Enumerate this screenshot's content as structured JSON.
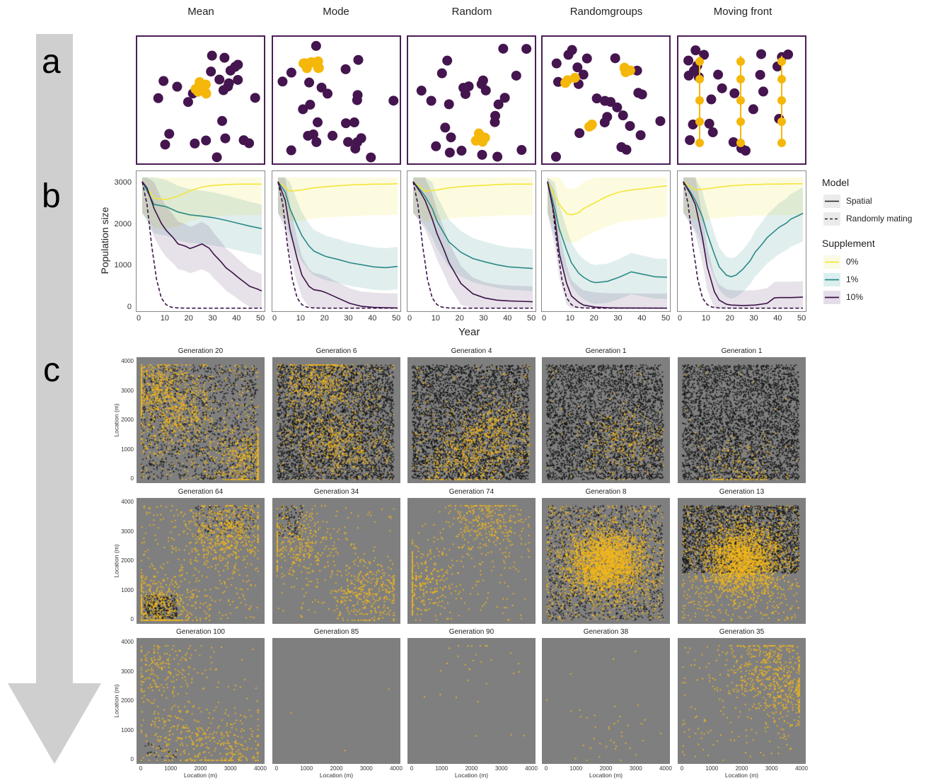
{
  "row_letters": [
    "a",
    "b",
    "c"
  ],
  "columns": [
    "Mean",
    "Mode",
    "Random",
    "Randomgroups",
    "Moving front"
  ],
  "colors": {
    "resident": "#44154f",
    "supplement": "#f5b70a",
    "s0": "#f2e63a",
    "s1": "#2a8a86",
    "s10": "#3b1148",
    "c_background": "#7f7f7f",
    "c_black": "#111111",
    "c_yellow": "#f2b71c",
    "arrow": "#cfcfcf"
  },
  "legend": {
    "model_title": "Model",
    "model_items": [
      "Spatial",
      "Randomly mating"
    ],
    "supplement_title": "Supplement",
    "supplement_items": [
      "0%",
      "1%",
      "10%"
    ]
  },
  "chart_data": [
    {
      "type": "line",
      "row": "b",
      "xlabel": "Year",
      "ylabel": "Population size",
      "xlim": [
        0,
        50
      ],
      "ylim": [
        0,
        3200
      ],
      "xticks": [
        0,
        10,
        20,
        30,
        40,
        50
      ],
      "yticks": [
        0,
        1000,
        2000,
        3000
      ],
      "panels": [
        {
          "strategy": "Mean",
          "series": [
            {
              "supplement": "0%",
              "model": "Spatial",
              "x": [
                0,
                5,
                10,
                15,
                20,
                25,
                30,
                35,
                40,
                45,
                50
              ],
              "y": [
                3050,
                2650,
                2620,
                2700,
                2830,
                2920,
                2960,
                2980,
                2990,
                2990,
                2990
              ]
            },
            {
              "supplement": "1%",
              "model": "Spatial",
              "x": [
                0,
                5,
                10,
                15,
                20,
                25,
                30,
                35,
                40,
                45,
                50
              ],
              "y": [
                3050,
                2500,
                2450,
                2320,
                2250,
                2220,
                2180,
                2120,
                2050,
                1980,
                1920
              ]
            },
            {
              "supplement": "10%",
              "model": "Spatial",
              "x": [
                0,
                2,
                5,
                8,
                10,
                13,
                15,
                18,
                20,
                22,
                25,
                28,
                30,
                33,
                35,
                38,
                40,
                43,
                45,
                48,
                50
              ],
              "y": [
                3050,
                2900,
                2400,
                2050,
                1880,
                1700,
                1550,
                1500,
                1440,
                1480,
                1550,
                1450,
                1300,
                1120,
                980,
                850,
                750,
                620,
                530,
                470,
                420
              ]
            },
            {
              "supplement": "10%",
              "model": "Randomly mating",
              "x": [
                0,
                2,
                4,
                6,
                8,
                10,
                12,
                15,
                20,
                50
              ],
              "y": [
                3050,
                2500,
                1500,
                700,
                250,
                90,
                30,
                10,
                5,
                5
              ]
            }
          ]
        },
        {
          "strategy": "Mode",
          "series": [
            {
              "supplement": "0%",
              "model": "Spatial",
              "x": [
                0,
                5,
                10,
                15,
                20,
                25,
                30,
                35,
                40,
                45,
                50
              ],
              "y": [
                3050,
                2820,
                2850,
                2900,
                2930,
                2950,
                2970,
                2980,
                2990,
                2990,
                3000
              ]
            },
            {
              "supplement": "1%",
              "model": "Spatial",
              "x": [
                0,
                3,
                5,
                8,
                10,
                13,
                15,
                18,
                20,
                25,
                30,
                35,
                40,
                45,
                50
              ],
              "y": [
                3050,
                2800,
                2400,
                2000,
                1750,
                1500,
                1380,
                1300,
                1250,
                1180,
                1100,
                1050,
                1000,
                980,
                1010
              ]
            },
            {
              "supplement": "10%",
              "model": "Spatial",
              "x": [
                0,
                3,
                5,
                8,
                10,
                13,
                15,
                18,
                20,
                25,
                30,
                35,
                40,
                45,
                50
              ],
              "y": [
                3050,
                2600,
                1900,
                1200,
                800,
                530,
                450,
                420,
                380,
                250,
                120,
                50,
                25,
                15,
                10
              ]
            },
            {
              "supplement": "10%",
              "model": "Randomly mating",
              "x": [
                0,
                2,
                4,
                6,
                8,
                10,
                12,
                15,
                20,
                50
              ],
              "y": [
                3050,
                2500,
                1500,
                700,
                250,
                90,
                30,
                10,
                5,
                5
              ]
            }
          ]
        },
        {
          "strategy": "Random",
          "series": [
            {
              "supplement": "0%",
              "model": "Spatial",
              "x": [
                0,
                5,
                10,
                15,
                20,
                25,
                30,
                35,
                40,
                45,
                50
              ],
              "y": [
                3050,
                2820,
                2850,
                2900,
                2930,
                2950,
                2960,
                2980,
                2990,
                2990,
                2990
              ]
            },
            {
              "supplement": "1%",
              "model": "Spatial",
              "x": [
                0,
                3,
                5,
                8,
                10,
                13,
                15,
                18,
                20,
                25,
                30,
                35,
                40,
                45,
                50
              ],
              "y": [
                3050,
                2850,
                2700,
                2400,
                2100,
                1800,
                1600,
                1450,
                1350,
                1200,
                1120,
                1050,
                1000,
                980,
                960
              ]
            },
            {
              "supplement": "10%",
              "model": "Spatial",
              "x": [
                0,
                3,
                5,
                8,
                10,
                13,
                15,
                18,
                20,
                25,
                30,
                35,
                40,
                45,
                50
              ],
              "y": [
                3050,
                2800,
                2600,
                2150,
                1800,
                1400,
                1100,
                800,
                600,
                350,
                250,
                200,
                180,
                170,
                160
              ]
            },
            {
              "supplement": "10%",
              "model": "Randomly mating",
              "x": [
                0,
                2,
                4,
                6,
                8,
                10,
                12,
                15,
                20,
                50
              ],
              "y": [
                3050,
                2500,
                1500,
                700,
                250,
                90,
                30,
                10,
                5,
                5
              ]
            }
          ]
        },
        {
          "strategy": "Randomgroups",
          "series": [
            {
              "supplement": "0%",
              "model": "Spatial",
              "x": [
                0,
                3,
                5,
                8,
                10,
                13,
                15,
                20,
                25,
                30,
                35,
                40,
                45,
                50
              ],
              "y": [
                3050,
                2700,
                2500,
                2280,
                2250,
                2300,
                2400,
                2550,
                2700,
                2800,
                2850,
                2880,
                2920,
                2950
              ]
            },
            {
              "supplement": "1%",
              "model": "Spatial",
              "x": [
                0,
                3,
                5,
                8,
                10,
                13,
                15,
                18,
                20,
                25,
                30,
                35,
                40,
                45,
                50
              ],
              "y": [
                3050,
                2400,
                1900,
                1400,
                1100,
                850,
                750,
                650,
                620,
                650,
                750,
                880,
                820,
                760,
                750
              ]
            },
            {
              "supplement": "10%",
              "model": "Spatial",
              "x": [
                0,
                3,
                5,
                8,
                10,
                13,
                15,
                20,
                25,
                30,
                50
              ],
              "y": [
                3050,
                2200,
                1300,
                600,
                300,
                150,
                80,
                30,
                15,
                10,
                5
              ]
            },
            {
              "supplement": "10%",
              "model": "Randomly mating",
              "x": [
                0,
                2,
                4,
                6,
                8,
                10,
                12,
                15,
                20,
                50
              ],
              "y": [
                3050,
                2500,
                1500,
                700,
                250,
                90,
                30,
                10,
                5,
                5
              ]
            }
          ]
        },
        {
          "strategy": "Moving front",
          "series": [
            {
              "supplement": "0%",
              "model": "Spatial",
              "x": [
                0,
                5,
                10,
                15,
                20,
                25,
                30,
                35,
                40,
                45,
                50
              ],
              "y": [
                3050,
                2850,
                2880,
                2920,
                2950,
                2970,
                2980,
                2990,
                2990,
                3000,
                3000
              ]
            },
            {
              "supplement": "1%",
              "model": "Spatial",
              "x": [
                0,
                3,
                5,
                8,
                10,
                13,
                15,
                18,
                20,
                22,
                25,
                28,
                30,
                33,
                35,
                38,
                40,
                43,
                45,
                48,
                50
              ],
              "y": [
                3050,
                2800,
                2600,
                2200,
                1800,
                1300,
                1000,
                800,
                760,
                800,
                950,
                1150,
                1350,
                1550,
                1700,
                1850,
                1950,
                2050,
                2150,
                2230,
                2290
              ]
            },
            {
              "supplement": "10%",
              "model": "Spatial",
              "x": [
                0,
                3,
                5,
                8,
                10,
                13,
                15,
                18,
                20,
                25,
                30,
                35,
                38,
                40,
                45,
                50
              ],
              "y": [
                3050,
                2750,
                2500,
                1700,
                1000,
                400,
                200,
                100,
                80,
                70,
                80,
                120,
                250,
                260,
                260,
                270
              ]
            },
            {
              "supplement": "10%",
              "model": "Randomly mating",
              "x": [
                0,
                2,
                4,
                6,
                8,
                10,
                12,
                15,
                20,
                50
              ],
              "y": [
                3050,
                2500,
                1500,
                700,
                250,
                90,
                30,
                10,
                5,
                5
              ]
            }
          ]
        }
      ]
    },
    {
      "type": "scatter",
      "row": "c",
      "xlabel": "Location (m)",
      "ylabel": "Location (m)",
      "xlim": [
        0,
        4000
      ],
      "ylim": [
        0,
        4000
      ],
      "xticks": [
        0,
        1000,
        2000,
        3000,
        4000
      ],
      "yticks": [
        0,
        1000,
        2000,
        3000,
        4000
      ],
      "panels": [
        {
          "title": "Generation 20",
          "black": 1500,
          "yellow": 1600,
          "clusters": [
            [
              1200,
              2200
            ],
            [
              500,
              3200
            ],
            [
              3500,
              700
            ]
          ]
        },
        {
          "title": "Generation 6",
          "black": 4200,
          "yellow": 1100,
          "clusters": [
            [
              2000,
              1300
            ],
            [
              1500,
              3300
            ]
          ]
        },
        {
          "title": "Generation 4",
          "black": 4300,
          "yellow": 900,
          "clusters": [
            [
              1700,
              700
            ],
            [
              2800,
              1600
            ]
          ]
        },
        {
          "title": "Generation 1",
          "black": 4000,
          "yellow": 300,
          "clusters": [
            [
              2500,
              1200
            ]
          ]
        },
        {
          "title": "Generation 1",
          "black": 4200,
          "yellow": 180,
          "clusters": [
            [
              1800,
              400
            ]
          ]
        },
        {
          "title": "Generation 64",
          "black": 420,
          "yellow": 1300,
          "clusters": [
            [
              2800,
              3000
            ],
            [
              600,
              500
            ]
          ]
        },
        {
          "title": "Generation 34",
          "black": 100,
          "yellow": 800,
          "clusters": [
            [
              700,
              2600
            ],
            [
              3000,
              900
            ]
          ]
        },
        {
          "title": "Generation 74",
          "black": 0,
          "yellow": 700,
          "clusters": [
            [
              2500,
              3300
            ],
            [
              200,
              1300
            ]
          ]
        },
        {
          "title": "Generation 8",
          "black": 1500,
          "yellow": 3200,
          "clusters": [
            [
              2000,
              2000
            ]
          ]
        },
        {
          "title": "Generation 13",
          "black": 3000,
          "yellow": 2600,
          "clusters": [
            [
              2000,
              2100
            ]
          ]
        },
        {
          "title": "Generation 100",
          "black": 20,
          "yellow": 620,
          "clusters": [
            [
              1300,
              900
            ],
            [
              3000,
              500
            ],
            [
              700,
              3100
            ]
          ]
        },
        {
          "title": "Generation 85",
          "black": 0,
          "yellow": 3,
          "clusters": []
        },
        {
          "title": "Generation 90",
          "black": 0,
          "yellow": 30,
          "clusters": [
            [
              2000,
              3400
            ]
          ]
        },
        {
          "title": "Generation 38",
          "black": 0,
          "yellow": 40,
          "clusters": [
            [
              2200,
              900
            ]
          ]
        },
        {
          "title": "Generation 35",
          "black": 0,
          "yellow": 700,
          "clusters": [
            [
              2700,
              3300
            ],
            [
              3500,
              2400
            ]
          ]
        }
      ]
    }
  ]
}
